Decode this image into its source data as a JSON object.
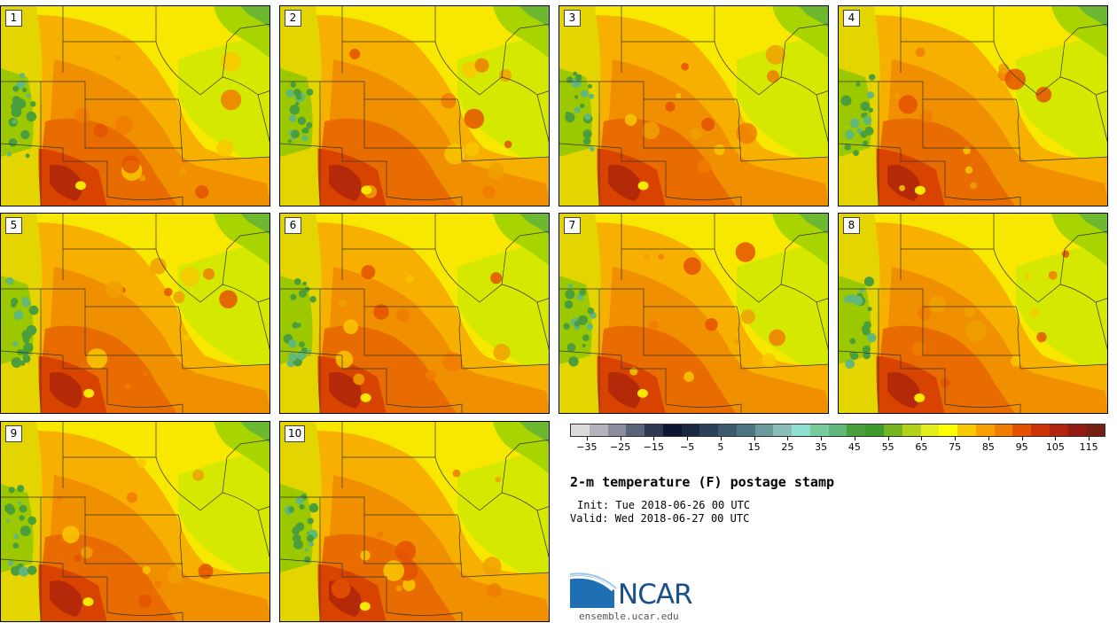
{
  "panels": [
    {
      "label": "1"
    },
    {
      "label": "2"
    },
    {
      "label": "3"
    },
    {
      "label": "4"
    },
    {
      "label": "5"
    },
    {
      "label": "6"
    },
    {
      "label": "7"
    },
    {
      "label": "8"
    },
    {
      "label": "9"
    },
    {
      "label": "10"
    }
  ],
  "colorbar": {
    "colors": [
      "#dcdcdc",
      "#b4b4bc",
      "#8c8c9c",
      "#5c6478",
      "#2e3850",
      "#0c1630",
      "#18283e",
      "#2c4058",
      "#3c5a6c",
      "#4e7482",
      "#6a9a9c",
      "#88bdb8",
      "#8fe0d0",
      "#78cc9c",
      "#62b87a",
      "#4a9e3c",
      "#3e9a2a",
      "#74b41e",
      "#b4d21a",
      "#e4ee1c",
      "#ffff00",
      "#f8c800",
      "#f8a000",
      "#f07c00",
      "#e45200",
      "#cc3408",
      "#b02410",
      "#941c12",
      "#742012"
    ],
    "tick_labels": [
      "−35",
      "−25",
      "−15",
      "−5",
      "5",
      "15",
      "25",
      "35",
      "45",
      "55",
      "65",
      "75",
      "85",
      "95",
      "105",
      "115"
    ],
    "tick_values": [
      -35,
      -25,
      -15,
      -5,
      5,
      15,
      25,
      35,
      45,
      55,
      65,
      75,
      85,
      95,
      105,
      115
    ],
    "range": [
      -40,
      120
    ]
  },
  "title": "2-m temperature (F) postage stamp",
  "init": "Init: Tue 2018-06-26 00 UTC",
  "valid": "Valid: Wed 2018-06-27 00 UTC",
  "logo": {
    "name": "NCAR",
    "url": "ensemble.ucar.edu"
  }
}
